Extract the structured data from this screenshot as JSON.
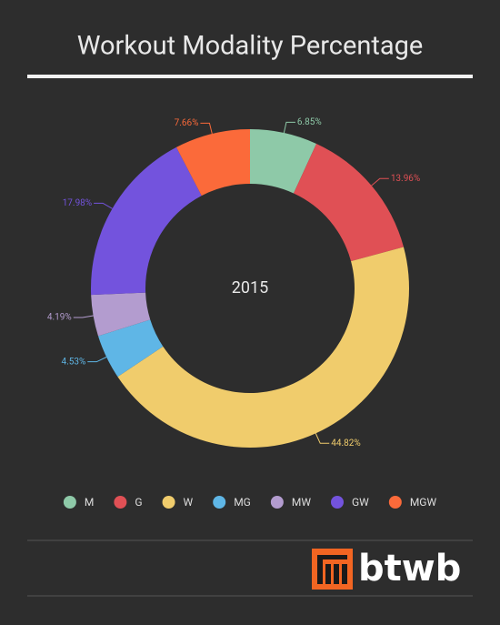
{
  "chart_data": {
    "type": "donut",
    "title": "Workout Modality Percentage",
    "center_label": "2015",
    "categories": [
      "M",
      "G",
      "W",
      "MG",
      "MW",
      "GW",
      "MGW"
    ],
    "values": [
      6.85,
      13.96,
      44.82,
      4.53,
      4.19,
      17.98,
      7.66
    ],
    "value_labels": [
      "6.85%",
      "13.96%",
      "44.82%",
      "4.53%",
      "4.19%",
      "17.98%",
      "7.66%"
    ],
    "colors": [
      "#8ec9a8",
      "#e05055",
      "#f0cc6c",
      "#5fb6e6",
      "#b39ccf",
      "#7353dd",
      "#fb6a3a"
    ]
  },
  "footer": {
    "logo": "btwb"
  }
}
